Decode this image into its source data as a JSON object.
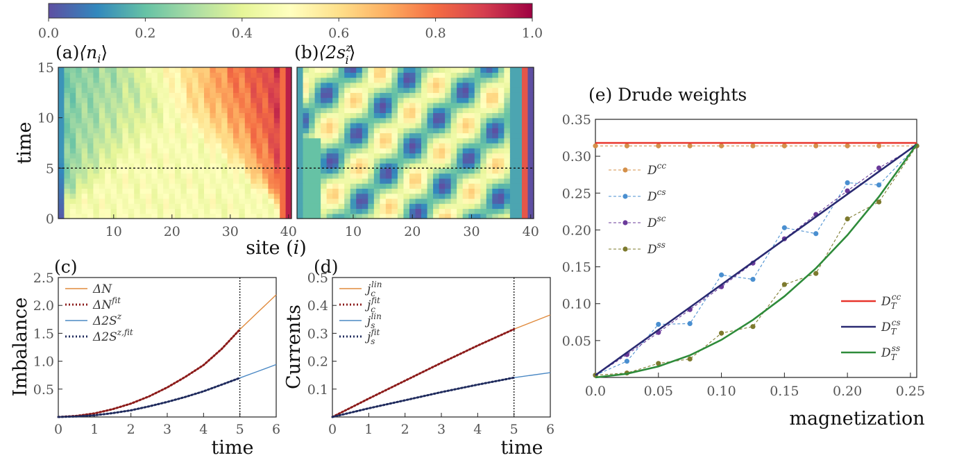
{
  "colorbar": {
    "ticks": [
      "0.0",
      "0.2",
      "0.4",
      "0.6",
      "0.8",
      "1.0"
    ],
    "colormap": "Spectral_r",
    "range": [
      0,
      1
    ]
  },
  "panels": {
    "a": {
      "label": "(a)",
      "quantity": "⟨n",
      "sub": "i",
      "close": "⟩"
    },
    "b": {
      "label": "(b)",
      "quantity": "⟨2s",
      "sup": "z",
      "sub": "i",
      "close": "⟩"
    },
    "c": {
      "label": "(c)"
    },
    "d": {
      "label": "(d)"
    },
    "e": {
      "label": "(e)",
      "title": "Drude weights"
    }
  },
  "chart_data": [
    {
      "id": "a",
      "type": "heatmap",
      "title": "(a)⟨n_i⟩",
      "xlabel": "site (i)",
      "ylabel": "time",
      "xlim": [
        0.5,
        40.5
      ],
      "ylim": [
        0,
        15
      ],
      "xticks": [
        "10",
        "20",
        "30",
        "40"
      ],
      "yticks": [
        "0",
        "5",
        "10",
        "15"
      ],
      "sites": 40,
      "time_rows": 30,
      "hline_at_time": 5,
      "description_values": "initial state ~0.5 on interior sites, site 1 ~0, site 40 ~1; a light cone of high density spreads left from the right edge"
    },
    {
      "id": "b",
      "type": "heatmap",
      "title": "(b)⟨2s_i^z⟩",
      "xlabel": "site (i)",
      "xlim": [
        0.5,
        40.5
      ],
      "ylim": [
        0,
        15
      ],
      "xticks": [
        "10",
        "20",
        "30",
        "40"
      ],
      "sites": 40,
      "time_rows": 30,
      "hline_at_time": 5
    },
    {
      "id": "c",
      "type": "line",
      "xlabel": "time",
      "ylabel": "Imbalance",
      "xlim": [
        0,
        6
      ],
      "ylim": [
        0,
        2.5
      ],
      "xticks": [
        "0",
        "1",
        "2",
        "3",
        "4",
        "5",
        "6"
      ],
      "yticks": [
        "0.5",
        "1.0",
        "1.5",
        "2.0",
        "2.5"
      ],
      "vline_at": 5,
      "series": [
        {
          "name": "ΔN",
          "label_main": "ΔN",
          "label_sup": "",
          "style": "solid",
          "color": "#e08a3c",
          "x": [
            0,
            0.5,
            1,
            1.5,
            2,
            2.5,
            3,
            3.5,
            4,
            4.5,
            5,
            5.5,
            6
          ],
          "y": [
            0,
            0.02,
            0.065,
            0.14,
            0.24,
            0.37,
            0.53,
            0.72,
            0.93,
            1.22,
            1.57,
            1.88,
            2.19
          ]
        },
        {
          "name": "ΔN^fit",
          "label_main": "ΔN",
          "label_sup": "fit",
          "style": "dotted",
          "color": "#8b1a1a",
          "x": [
            0,
            0.5,
            1,
            1.5,
            2,
            2.5,
            3,
            3.5,
            4,
            4.5,
            5
          ],
          "y": [
            0,
            0.02,
            0.065,
            0.14,
            0.24,
            0.37,
            0.53,
            0.72,
            0.93,
            1.22,
            1.57
          ]
        },
        {
          "name": "Δ2S^z",
          "label_main": "Δ2S",
          "label_sup": "z",
          "style": "solid",
          "color": "#4a88c4",
          "x": [
            0,
            0.5,
            1,
            1.5,
            2,
            2.5,
            3,
            3.5,
            4,
            4.5,
            5,
            5.5,
            6
          ],
          "y": [
            0,
            0.01,
            0.03,
            0.07,
            0.12,
            0.19,
            0.27,
            0.36,
            0.46,
            0.58,
            0.7,
            0.82,
            0.94
          ]
        },
        {
          "name": "Δ2S^z,fit",
          "label_main": "Δ2S",
          "label_sup": "z,fit",
          "style": "dotted",
          "color": "#1f2a5c",
          "x": [
            0,
            0.5,
            1,
            1.5,
            2,
            2.5,
            3,
            3.5,
            4,
            4.5,
            5
          ],
          "y": [
            0,
            0.01,
            0.03,
            0.07,
            0.12,
            0.19,
            0.27,
            0.36,
            0.46,
            0.58,
            0.7
          ]
        }
      ]
    },
    {
      "id": "d",
      "type": "line",
      "xlabel": "time",
      "ylabel": "Currents",
      "xlim": [
        0,
        6
      ],
      "ylim": [
        0,
        0.5
      ],
      "xticks": [
        "0",
        "1",
        "2",
        "3",
        "4",
        "5",
        "6"
      ],
      "yticks": [
        "0.1",
        "0.2",
        "0.3",
        "0.4",
        "0.5"
      ],
      "vline_at": 5,
      "series": [
        {
          "name": "j_c^lin",
          "label_main": "j",
          "label_sub": "c",
          "label_sup": "lin",
          "style": "solid",
          "color": "#e08a3c",
          "x": [
            0,
            1,
            2,
            3,
            4,
            5,
            6
          ],
          "y": [
            0,
            0.066,
            0.13,
            0.194,
            0.256,
            0.315,
            0.366
          ]
        },
        {
          "name": "j_c^fit",
          "label_main": "j",
          "label_sub": "c",
          "label_sup": "fit",
          "style": "dotted",
          "color": "#8b1a1a",
          "x": [
            0,
            1,
            2,
            3,
            4,
            5
          ],
          "y": [
            0,
            0.066,
            0.13,
            0.194,
            0.256,
            0.315
          ]
        },
        {
          "name": "j_s^lin",
          "label_main": "j",
          "label_sub": "s",
          "label_sup": "lin",
          "style": "solid",
          "color": "#4a88c4",
          "x": [
            0,
            1,
            2,
            3,
            4,
            5,
            6
          ],
          "y": [
            0,
            0.031,
            0.06,
            0.089,
            0.116,
            0.141,
            0.159
          ]
        },
        {
          "name": "j_s^fit",
          "label_main": "j",
          "label_sub": "s",
          "label_sup": "fit",
          "style": "dotted",
          "color": "#1f2a5c",
          "x": [
            0,
            1,
            2,
            3,
            4,
            5
          ],
          "y": [
            0,
            0.031,
            0.06,
            0.089,
            0.116,
            0.141
          ]
        }
      ]
    },
    {
      "id": "e",
      "type": "line",
      "title": "(e) Drude weights",
      "xlabel": "magnetization",
      "xlim": [
        0,
        0.255
      ],
      "ylim": [
        0,
        0.35
      ],
      "xticks": [
        "0.0",
        "0.05",
        "0.10",
        "0.15",
        "0.20",
        "0.25"
      ],
      "yticks": [
        "0.05",
        "0.10",
        "0.15",
        "0.20",
        "0.25",
        "0.30",
        "0.35"
      ],
      "series": [
        {
          "name": "D^cc",
          "label_main": "D",
          "label_sup": "cc",
          "style": "dashed-marker",
          "color": "#d4904a",
          "x": [
            0,
            0.025,
            0.05,
            0.075,
            0.1,
            0.125,
            0.15,
            0.175,
            0.2,
            0.225,
            0.255
          ],
          "y": [
            0.314,
            0.314,
            0.314,
            0.314,
            0.314,
            0.314,
            0.314,
            0.314,
            0.314,
            0.314,
            0.314
          ]
        },
        {
          "name": "D^cs",
          "label_main": "D",
          "label_sup": "cs",
          "style": "dashed-marker",
          "color": "#4a8fd0",
          "x": [
            0,
            0.025,
            0.05,
            0.075,
            0.1,
            0.125,
            0.15,
            0.175,
            0.2,
            0.225,
            0.255
          ],
          "y": [
            0.003,
            0.022,
            0.072,
            0.073,
            0.139,
            0.133,
            0.203,
            0.195,
            0.264,
            0.261,
            0.314
          ]
        },
        {
          "name": "D^sc",
          "label_main": "D",
          "label_sup": "sc",
          "style": "dashed-marker",
          "color": "#6a3a9a",
          "x": [
            0,
            0.025,
            0.05,
            0.075,
            0.1,
            0.125,
            0.15,
            0.175,
            0.2,
            0.225,
            0.255
          ],
          "y": [
            0.003,
            0.031,
            0.061,
            0.092,
            0.123,
            0.155,
            0.188,
            0.221,
            0.253,
            0.284,
            0.314
          ]
        },
        {
          "name": "D^ss",
          "label_main": "D",
          "label_sup": "ss",
          "style": "dashed-marker",
          "color": "#7d7a2e",
          "x": [
            0,
            0.025,
            0.05,
            0.075,
            0.1,
            0.125,
            0.15,
            0.175,
            0.2,
            0.225,
            0.255
          ],
          "y": [
            0.003,
            0.006,
            0.019,
            0.025,
            0.06,
            0.069,
            0.126,
            0.141,
            0.215,
            0.238,
            0.314
          ]
        },
        {
          "name": "D_T^cc",
          "label_main": "D",
          "label_sub": "T",
          "label_sup": "cc",
          "style": "solid-thick",
          "color": "#e8352c",
          "x": [
            0,
            0.255
          ],
          "y": [
            0.318,
            0.318
          ]
        },
        {
          "name": "D_T^cs",
          "label_main": "D",
          "label_sub": "T",
          "label_sup": "cs",
          "style": "solid-thick",
          "color": "#2a2a72",
          "x": [
            0,
            0.255
          ],
          "y": [
            0.003,
            0.316
          ]
        },
        {
          "name": "D_T^ss",
          "label_main": "D",
          "label_sub": "T",
          "label_sup": "ss",
          "style": "solid-thick",
          "color": "#2e8b3a",
          "x": [
            0,
            0.025,
            0.05,
            0.075,
            0.1,
            0.125,
            0.15,
            0.175,
            0.2,
            0.225,
            0.255
          ],
          "y": [
            0.0,
            0.005,
            0.015,
            0.03,
            0.051,
            0.078,
            0.11,
            0.148,
            0.193,
            0.245,
            0.316
          ]
        }
      ]
    }
  ]
}
